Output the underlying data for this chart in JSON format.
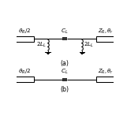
{
  "bg_color": "#ffffff",
  "line_color": "#000000",
  "fig_width": 1.61,
  "fig_height": 1.61,
  "dpi": 100,
  "labels": {
    "thetaR_2_a": "$\\vartheta_R/2$",
    "CL_a": "$C_L$",
    "ZR_theta_a": "$Z_R, \\theta_r$",
    "2LL_left": "$2L_L$",
    "2LL_right": "$2L_L$",
    "label_a": "(a)",
    "thetaR_2_b": "$\\vartheta_R/2$",
    "CL_b": "$C_L$",
    "ZR_theta_b": "$Z_R, \\theta_r$",
    "label_b": "(b)"
  },
  "font_size": 5.2,
  "lw": 0.75
}
